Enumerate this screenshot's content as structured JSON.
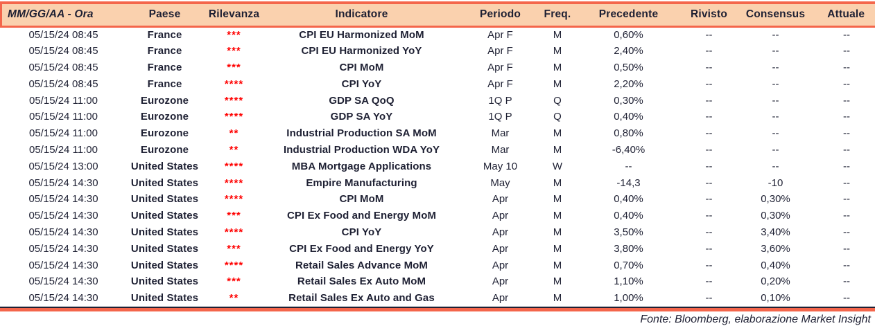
{
  "colors": {
    "accent": "#F4664B",
    "header_bg": "#FAD1AE",
    "text": "#1E2033",
    "relevance": "#FF0000"
  },
  "table": {
    "columns": [
      {
        "key": "datetime",
        "label": "MM/GG/AA - Ora"
      },
      {
        "key": "country",
        "label": "Paese"
      },
      {
        "key": "relevance",
        "label": "Rilevanza"
      },
      {
        "key": "indicator",
        "label": "Indicatore"
      },
      {
        "key": "period",
        "label": "Periodo"
      },
      {
        "key": "freq",
        "label": "Freq."
      },
      {
        "key": "previous",
        "label": "Precedente"
      },
      {
        "key": "revised",
        "label": "Rivisto"
      },
      {
        "key": "consensus",
        "label": "Consensus"
      },
      {
        "key": "actual",
        "label": "Attuale"
      }
    ],
    "rows": [
      {
        "datetime": "05/15/24 08:45",
        "country": "France",
        "relevance": "***",
        "indicator": "CPI EU Harmonized MoM",
        "period": "Apr F",
        "freq": "M",
        "previous": "0,60%",
        "revised": "--",
        "consensus": "--",
        "actual": "--"
      },
      {
        "datetime": "05/15/24 08:45",
        "country": "France",
        "relevance": "***",
        "indicator": "CPI EU Harmonized YoY",
        "period": "Apr F",
        "freq": "M",
        "previous": "2,40%",
        "revised": "--",
        "consensus": "--",
        "actual": "--"
      },
      {
        "datetime": "05/15/24 08:45",
        "country": "France",
        "relevance": "***",
        "indicator": "CPI MoM",
        "period": "Apr F",
        "freq": "M",
        "previous": "0,50%",
        "revised": "--",
        "consensus": "--",
        "actual": "--"
      },
      {
        "datetime": "05/15/24 08:45",
        "country": "France",
        "relevance": "****",
        "indicator": "CPI YoY",
        "period": "Apr F",
        "freq": "M",
        "previous": "2,20%",
        "revised": "--",
        "consensus": "--",
        "actual": "--"
      },
      {
        "datetime": "05/15/24 11:00",
        "country": "Eurozone",
        "relevance": "****",
        "indicator": "GDP SA QoQ",
        "period": "1Q P",
        "freq": "Q",
        "previous": "0,30%",
        "revised": "--",
        "consensus": "--",
        "actual": "--"
      },
      {
        "datetime": "05/15/24 11:00",
        "country": "Eurozone",
        "relevance": "****",
        "indicator": "GDP SA YoY",
        "period": "1Q P",
        "freq": "Q",
        "previous": "0,40%",
        "revised": "--",
        "consensus": "--",
        "actual": "--"
      },
      {
        "datetime": "05/15/24 11:00",
        "country": "Eurozone",
        "relevance": "**",
        "indicator": "Industrial Production SA MoM",
        "period": "Mar",
        "freq": "M",
        "previous": "0,80%",
        "revised": "--",
        "consensus": "--",
        "actual": "--"
      },
      {
        "datetime": "05/15/24 11:00",
        "country": "Eurozone",
        "relevance": "**",
        "indicator": "Industrial Production WDA YoY",
        "period": "Mar",
        "freq": "M",
        "previous": "-6,40%",
        "revised": "--",
        "consensus": "--",
        "actual": "--"
      },
      {
        "datetime": "05/15/24 13:00",
        "country": "United States",
        "relevance": "****",
        "indicator": "MBA Mortgage Applications",
        "period": "May 10",
        "freq": "W",
        "previous": "--",
        "revised": "--",
        "consensus": "--",
        "actual": "--"
      },
      {
        "datetime": "05/15/24 14:30",
        "country": "United States",
        "relevance": "****",
        "indicator": "Empire Manufacturing",
        "period": "May",
        "freq": "M",
        "previous": "-14,3",
        "revised": "--",
        "consensus": "-10",
        "actual": "--"
      },
      {
        "datetime": "05/15/24 14:30",
        "country": "United States",
        "relevance": "****",
        "indicator": "CPI MoM",
        "period": "Apr",
        "freq": "M",
        "previous": "0,40%",
        "revised": "--",
        "consensus": "0,30%",
        "actual": "--"
      },
      {
        "datetime": "05/15/24 14:30",
        "country": "United States",
        "relevance": "***",
        "indicator": "CPI Ex Food and Energy MoM",
        "period": "Apr",
        "freq": "M",
        "previous": "0,40%",
        "revised": "--",
        "consensus": "0,30%",
        "actual": "--"
      },
      {
        "datetime": "05/15/24 14:30",
        "country": "United States",
        "relevance": "****",
        "indicator": "CPI YoY",
        "period": "Apr",
        "freq": "M",
        "previous": "3,50%",
        "revised": "--",
        "consensus": "3,40%",
        "actual": "--"
      },
      {
        "datetime": "05/15/24 14:30",
        "country": "United States",
        "relevance": "***",
        "indicator": "CPI Ex Food and Energy YoY",
        "period": "Apr",
        "freq": "M",
        "previous": "3,80%",
        "revised": "--",
        "consensus": "3,60%",
        "actual": "--"
      },
      {
        "datetime": "05/15/24 14:30",
        "country": "United States",
        "relevance": "****",
        "indicator": "Retail Sales Advance MoM",
        "period": "Apr",
        "freq": "M",
        "previous": "0,70%",
        "revised": "--",
        "consensus": "0,40%",
        "actual": "--"
      },
      {
        "datetime": "05/15/24 14:30",
        "country": "United States",
        "relevance": "***",
        "indicator": "Retail Sales Ex Auto MoM",
        "period": "Apr",
        "freq": "M",
        "previous": "1,10%",
        "revised": "--",
        "consensus": "0,20%",
        "actual": "--"
      },
      {
        "datetime": "05/15/24 14:30",
        "country": "United States",
        "relevance": "**",
        "indicator": "Retail Sales Ex Auto and Gas",
        "period": "Apr",
        "freq": "M",
        "previous": "1,00%",
        "revised": "--",
        "consensus": "0,10%",
        "actual": "--"
      }
    ]
  },
  "footer": {
    "source_note": "Fonte: Bloomberg, elaborazione Market Insight"
  }
}
